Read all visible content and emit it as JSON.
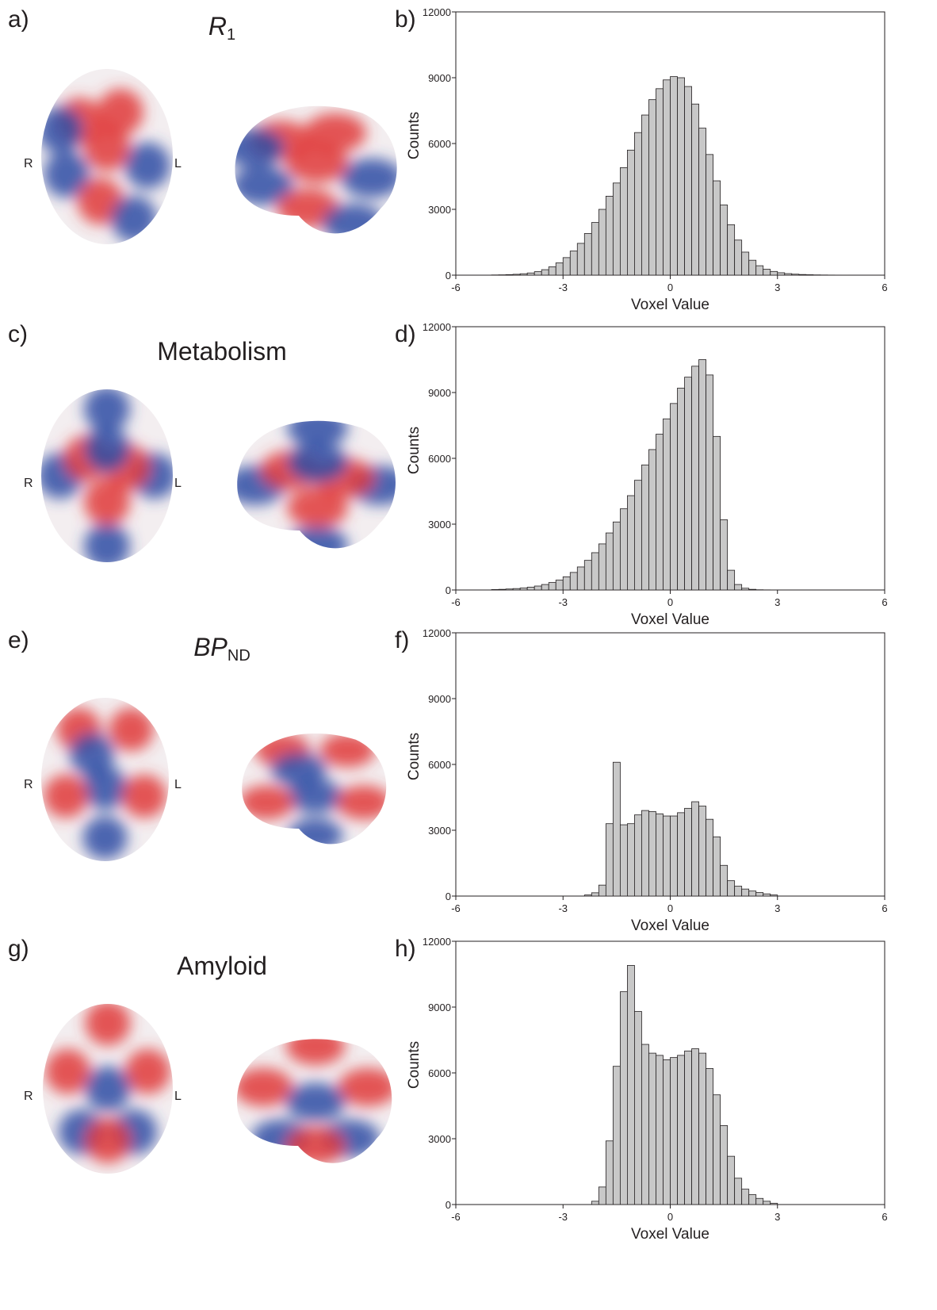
{
  "labels": {
    "left_dir": "R",
    "right_dir": "L"
  },
  "colors": {
    "positive": "#e03a3a",
    "negative": "#2e4da5",
    "bar": "#c8c8c8",
    "edge": "#231f20"
  },
  "panels": [
    {
      "image_label": "a)",
      "title_main": "R",
      "title_sub": "1",
      "title_italic": true,
      "chart_label": "b)"
    },
    {
      "image_label": "c)",
      "title_main": "Metabolism",
      "title_sub": "",
      "title_italic": false,
      "chart_label": "d)"
    },
    {
      "image_label": "e)",
      "title_main": "BP",
      "title_sub": "ND",
      "title_italic": true,
      "chart_label": "f)"
    },
    {
      "image_label": "g)",
      "title_main": "Amyloid",
      "title_sub": "",
      "title_italic": false,
      "chart_label": "h)"
    }
  ],
  "chart_data": [
    {
      "type": "bar",
      "xlabel": "Voxel Value",
      "ylabel": "Counts",
      "xlim": [
        -6,
        6
      ],
      "ylim": [
        0,
        12000
      ],
      "xticks": [
        "-6",
        "-3",
        "0",
        "3",
        "6"
      ],
      "yticks": [
        "0",
        "3000",
        "6000",
        "9000",
        "12000"
      ],
      "bin_width": 0.2,
      "bin_centers": [
        -4.9,
        -4.7,
        -4.5,
        -4.3,
        -4.1,
        -3.9,
        -3.7,
        -3.5,
        -3.3,
        -3.1,
        -2.9,
        -2.7,
        -2.5,
        -2.3,
        -2.1,
        -1.9,
        -1.7,
        -1.5,
        -1.3,
        -1.1,
        -0.9,
        -0.7,
        -0.5,
        -0.3,
        -0.1,
        0.1,
        0.3,
        0.5,
        0.7,
        0.9,
        1.1,
        1.3,
        1.5,
        1.7,
        1.9,
        2.1,
        2.3,
        2.5,
        2.7,
        2.9,
        3.1,
        3.3,
        3.5,
        3.7,
        3.9,
        4.1,
        4.3,
        4.5,
        4.7,
        4.9
      ],
      "values": [
        10,
        15,
        25,
        40,
        65,
        100,
        160,
        250,
        380,
        560,
        800,
        1100,
        1450,
        1900,
        2400,
        3000,
        3600,
        4200,
        4900,
        5700,
        6500,
        7300,
        8000,
        8500,
        8900,
        9050,
        9000,
        8600,
        7800,
        6700,
        5500,
        4300,
        3200,
        2300,
        1600,
        1050,
        680,
        430,
        270,
        170,
        110,
        70,
        45,
        30,
        20,
        12,
        8,
        5,
        3,
        2
      ]
    },
    {
      "type": "bar",
      "xlabel": "Voxel Value",
      "ylabel": "Counts",
      "xlim": [
        -6,
        6
      ],
      "ylim": [
        0,
        12000
      ],
      "xticks": [
        "-6",
        "-3",
        "0",
        "3",
        "6"
      ],
      "yticks": [
        "0",
        "3000",
        "6000",
        "9000",
        "12000"
      ],
      "bin_width": 0.2,
      "bin_centers": [
        -4.9,
        -4.7,
        -4.5,
        -4.3,
        -4.1,
        -3.9,
        -3.7,
        -3.5,
        -3.3,
        -3.1,
        -2.9,
        -2.7,
        -2.5,
        -2.3,
        -2.1,
        -1.9,
        -1.7,
        -1.5,
        -1.3,
        -1.1,
        -0.9,
        -0.7,
        -0.5,
        -0.3,
        -0.1,
        0.1,
        0.3,
        0.5,
        0.7,
        0.9,
        1.1,
        1.3,
        1.5,
        1.7,
        1.9,
        2.1,
        2.3,
        2.5,
        2.7,
        2.9,
        3.1,
        3.3,
        3.5,
        3.7,
        3.9,
        4.1,
        4.3,
        4.5,
        4.7,
        4.9
      ],
      "values": [
        20,
        30,
        45,
        65,
        90,
        130,
        180,
        250,
        340,
        450,
        600,
        800,
        1050,
        1350,
        1700,
        2100,
        2600,
        3100,
        3700,
        4300,
        5000,
        5700,
        6400,
        7100,
        7800,
        8500,
        9200,
        9700,
        10200,
        10500,
        9800,
        7000,
        3200,
        900,
        250,
        80,
        30,
        10,
        5,
        2,
        0,
        0,
        0,
        0,
        0,
        0,
        0,
        0,
        0,
        0
      ]
    },
    {
      "type": "bar",
      "xlabel": "Voxel Value",
      "ylabel": "Counts",
      "xlim": [
        -6,
        6
      ],
      "ylim": [
        0,
        12000
      ],
      "xticks": [
        "-6",
        "-3",
        "0",
        "3",
        "6"
      ],
      "yticks": [
        "0",
        "3000",
        "6000",
        "9000",
        "12000"
      ],
      "bin_width": 0.2,
      "bin_centers": [
        -2.3,
        -2.1,
        -1.9,
        -1.7,
        -1.5,
        -1.3,
        -1.1,
        -0.9,
        -0.7,
        -0.5,
        -0.3,
        -0.1,
        0.1,
        0.3,
        0.5,
        0.7,
        0.9,
        1.1,
        1.3,
        1.5,
        1.7,
        1.9,
        2.1,
        2.3,
        2.5,
        2.7,
        2.9
      ],
      "values": [
        50,
        150,
        500,
        3300,
        6100,
        3250,
        3300,
        3700,
        3900,
        3850,
        3750,
        3650,
        3650,
        3800,
        4000,
        4300,
        4100,
        3500,
        2700,
        1400,
        700,
        450,
        320,
        230,
        160,
        100,
        50
      ]
    },
    {
      "type": "bar",
      "xlabel": "Voxel Value",
      "ylabel": "Counts",
      "xlim": [
        -6,
        6
      ],
      "ylim": [
        0,
        12000
      ],
      "xticks": [
        "-6",
        "-3",
        "0",
        "3",
        "6"
      ],
      "yticks": [
        "0",
        "3000",
        "6000",
        "9000",
        "12000"
      ],
      "bin_width": 0.2,
      "bin_centers": [
        -2.1,
        -1.9,
        -1.7,
        -1.5,
        -1.3,
        -1.1,
        -0.9,
        -0.7,
        -0.5,
        -0.3,
        -0.1,
        0.1,
        0.3,
        0.5,
        0.7,
        0.9,
        1.1,
        1.3,
        1.5,
        1.7,
        1.9,
        2.1,
        2.3,
        2.5,
        2.7,
        2.9
      ],
      "values": [
        150,
        800,
        2900,
        6300,
        9700,
        10900,
        8800,
        7300,
        6900,
        6800,
        6600,
        6700,
        6800,
        7000,
        7100,
        6900,
        6200,
        5000,
        3600,
        2200,
        1200,
        700,
        450,
        280,
        150,
        60
      ]
    }
  ]
}
